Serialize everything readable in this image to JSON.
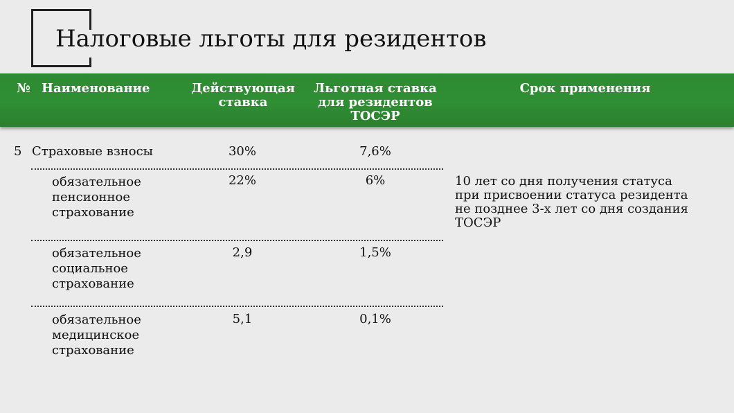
{
  "title": "Налоговые льготы для резидентов",
  "colors": {
    "header_green": "#2e8a32",
    "background": "#ebebeb",
    "text": "#111111"
  },
  "table": {
    "headers": {
      "num": "№",
      "name": "Наименование",
      "current_rate": "Действующая ставка",
      "preferential_rate": "Льготная ставка для резидентов ТОСЭР",
      "period": "Срок применения"
    },
    "main_row": {
      "num": "5",
      "name": "Страховые взносы",
      "current_rate": "30%",
      "preferential_rate": "7,6%"
    },
    "sub_rows": [
      {
        "name": "обязательное пенсионное страхование",
        "current_rate": "22%",
        "preferential_rate": "6%"
      },
      {
        "name": "обязательное социальное страхование",
        "current_rate": "2,9",
        "preferential_rate": "1,5%"
      },
      {
        "name": "обязательное медицинское страхование",
        "current_rate": "5,1",
        "preferential_rate": "0,1%"
      }
    ],
    "period_text": "10 лет со дня получения статуса при присвоении статуса резидента не позднее 3-х лет со дня создания ТОСЭР"
  }
}
